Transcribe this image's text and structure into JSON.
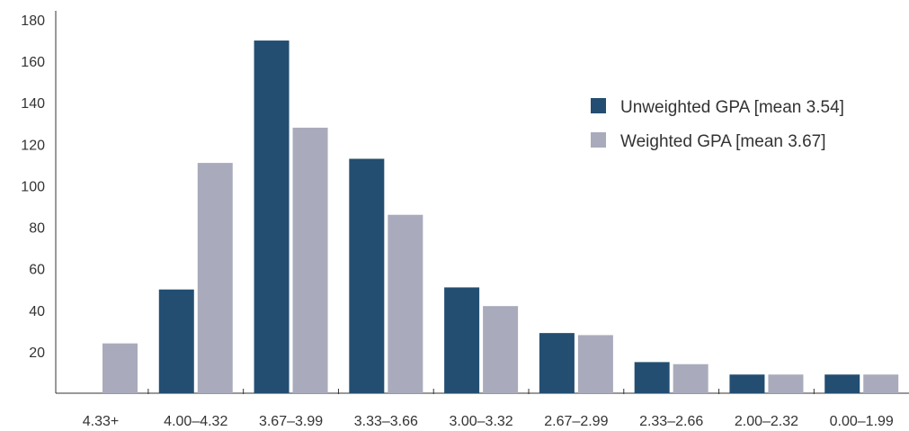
{
  "chart_data": {
    "type": "bar",
    "categories": [
      "4.33+",
      "4.00–4.32",
      "3.67–3.99",
      "3.33–3.66",
      "3.00–3.32",
      "2.67–2.99",
      "2.33–2.66",
      "2.00–2.32",
      "0.00–1.99"
    ],
    "series": [
      {
        "name": "Unweighted GPA [mean 3.54]",
        "color": "#234e72",
        "values": [
          0,
          50,
          170,
          113,
          51,
          29,
          15,
          9,
          9
        ]
      },
      {
        "name": "Weighted GPA [mean 3.67]",
        "color": "#a9abbc",
        "values": [
          24,
          111,
          128,
          86,
          42,
          28,
          14,
          9,
          9
        ]
      }
    ],
    "y_ticks": [
      20,
      40,
      60,
      80,
      100,
      120,
      140,
      160,
      180
    ],
    "ylim": [
      0,
      180
    ],
    "title": "",
    "xlabel": "",
    "ylabel": "",
    "grid": false,
    "legend_position": "top-right"
  }
}
